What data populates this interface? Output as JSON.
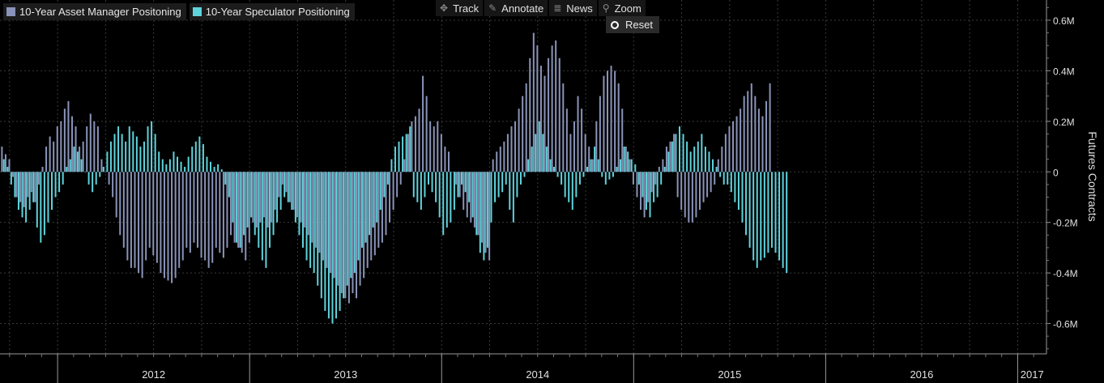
{
  "legend": {
    "asset_manager": "10-Year Asset Manager Positoning",
    "speculator": "10-Year Speculator Positioning"
  },
  "toolbar": {
    "track": "Track",
    "annotate": "Annotate",
    "news": "News",
    "zoom": "Zoom",
    "reset": "Reset"
  },
  "colors": {
    "asset_manager": "#8a93b8",
    "speculator": "#5fd3dc",
    "background": "#000000",
    "grid": "#3a3a3a"
  },
  "chart_data": {
    "type": "bar",
    "ylabel": "Futures Contracts",
    "ylim": [
      -0.72,
      0.68
    ],
    "yticks": [
      0.6,
      0.4,
      0.2,
      0,
      -0.2,
      -0.4,
      -0.6
    ],
    "ytick_labels": [
      "0.6M",
      "0.4M",
      "0.2M",
      "0",
      "-0.2M",
      "-0.4M",
      "-0.6M"
    ],
    "xlim": [
      2011.7,
      2017.15
    ],
    "xtick_labels": [
      {
        "label": "2012",
        "x": 2012.0
      },
      {
        "label": "2013",
        "x": 2013.0
      },
      {
        "label": "2014",
        "x": 2014.0
      },
      {
        "label": "2015",
        "x": 2015.0
      },
      {
        "label": "2016",
        "x": 2016.0
      },
      {
        "label": "2017",
        "x": 2017.0
      }
    ],
    "year_boundaries": [
      2012.0,
      2013.0,
      2014.0,
      2015.0,
      2016.0,
      2017.0
    ],
    "grid": true,
    "legend_position": "top-left",
    "series": [
      {
        "name": "10-Year Asset Manager Positoning",
        "start": 2011.71,
        "step": 0.01923,
        "values": [
          0.1,
          0.07,
          0.05,
          -0.02,
          -0.1,
          -0.12,
          -0.14,
          -0.1,
          -0.08,
          -0.12,
          -0.05,
          0.02,
          0.1,
          0.14,
          0.12,
          0.18,
          0.2,
          0.25,
          0.28,
          0.22,
          0.18,
          0.1,
          0.12,
          0.18,
          0.23,
          0.2,
          0.18,
          0.05,
          0,
          -0.05,
          -0.1,
          -0.18,
          -0.25,
          -0.3,
          -0.35,
          -0.38,
          -0.38,
          -0.4,
          -0.42,
          -0.35,
          -0.3,
          -0.33,
          -0.36,
          -0.4,
          -0.42,
          -0.43,
          -0.44,
          -0.42,
          -0.38,
          -0.35,
          -0.3,
          -0.32,
          -0.28,
          -0.3,
          -0.34,
          -0.35,
          -0.38,
          -0.36,
          -0.3,
          -0.32,
          -0.34,
          -0.3,
          -0.25,
          -0.28,
          -0.3,
          -0.32,
          -0.35,
          -0.28,
          -0.2,
          -0.22,
          -0.2,
          -0.18,
          -0.22,
          -0.2,
          -0.15,
          -0.1,
          -0.05,
          -0.08,
          -0.12,
          -0.15,
          -0.18,
          -0.2,
          -0.22,
          -0.25,
          -0.28,
          -0.3,
          -0.32,
          -0.35,
          -0.38,
          -0.4,
          -0.42,
          -0.45,
          -0.48,
          -0.5,
          -0.52,
          -0.48,
          -0.5,
          -0.45,
          -0.42,
          -0.38,
          -0.35,
          -0.33,
          -0.3,
          -0.28,
          -0.25,
          -0.2,
          -0.15,
          -0.1,
          -0.05,
          0.05,
          0.15,
          0.2,
          0.22,
          0.25,
          0.38,
          0.3,
          0.2,
          0.18,
          0.2,
          0.15,
          0.1,
          0.08,
          0,
          -0.05,
          -0.1,
          -0.15,
          -0.18,
          -0.2,
          -0.22,
          -0.25,
          -0.28,
          -0.32,
          -0.35,
          0.05,
          0.08,
          0.1,
          0.12,
          0.15,
          0.18,
          0.2,
          0.25,
          0.3,
          0.35,
          0.45,
          0.55,
          0.5,
          0.42,
          0.38,
          0.45,
          0.5,
          0.52,
          0.45,
          0.35,
          0.25,
          0.15,
          0.2,
          0.3,
          0.25,
          0.15,
          0.1,
          0.05,
          0.2,
          0.3,
          0.38,
          0.4,
          0.42,
          0.4,
          0.35,
          0.25,
          0.1,
          0.05,
          -0.05,
          -0.1,
          -0.15,
          -0.18,
          -0.12,
          -0.08,
          -0.05,
          0.02,
          0.05,
          0.1,
          0.12,
          0.15,
          -0.1,
          -0.15,
          -0.18,
          -0.2,
          -0.2,
          -0.18,
          -0.15,
          -0.12,
          -0.1,
          -0.08,
          -0.05,
          0.05,
          0.1,
          0.15,
          0.18,
          0.2,
          0.22,
          0.25,
          0.3,
          0.32,
          0.35,
          0.3,
          0.25,
          0.22,
          0.28,
          0.35
        ]
      },
      {
        "name": "10-Year Speculator Positioning",
        "start": 2011.72,
        "step": 0.01923,
        "values": [
          0.05,
          0.02,
          -0.05,
          -0.1,
          -0.15,
          -0.18,
          -0.2,
          -0.15,
          -0.12,
          -0.22,
          -0.28,
          -0.25,
          -0.2,
          -0.15,
          -0.1,
          -0.08,
          -0.05,
          0.02,
          0.05,
          0.1,
          0.08,
          0.05,
          0,
          -0.05,
          -0.08,
          -0.05,
          -0.02,
          0.02,
          0.08,
          0.12,
          0.15,
          0.18,
          0.15,
          0.12,
          0.18,
          0.16,
          0.14,
          0.1,
          0.12,
          0.18,
          0.2,
          0.15,
          0.08,
          0.05,
          0.03,
          0.05,
          0.08,
          0.06,
          0.04,
          0.02,
          0.06,
          0.1,
          0.12,
          0.14,
          0.11,
          0.06,
          0.04,
          0.02,
          0.03,
          0.01,
          -0.05,
          -0.1,
          -0.2,
          -0.28,
          -0.3,
          -0.25,
          -0.22,
          -0.18,
          -0.25,
          -0.3,
          -0.35,
          -0.38,
          -0.3,
          -0.25,
          -0.2,
          -0.15,
          -0.1,
          -0.12,
          -0.15,
          -0.2,
          -0.25,
          -0.3,
          -0.35,
          -0.38,
          -0.4,
          -0.45,
          -0.5,
          -0.55,
          -0.58,
          -0.6,
          -0.58,
          -0.55,
          -0.5,
          -0.45,
          -0.42,
          -0.4,
          -0.35,
          -0.3,
          -0.28,
          -0.25,
          -0.22,
          -0.2,
          -0.15,
          -0.1,
          -0.05,
          0.05,
          0.1,
          0.12,
          0.14,
          0.15,
          0.18,
          -0.1,
          -0.12,
          -0.15,
          -0.1,
          -0.05,
          -0.08,
          -0.12,
          -0.18,
          -0.25,
          -0.22,
          -0.2,
          -0.15,
          -0.1,
          -0.05,
          -0.08,
          -0.12,
          -0.18,
          -0.25,
          -0.32,
          -0.35,
          -0.3,
          -0.2,
          -0.12,
          -0.1,
          -0.08,
          -0.05,
          -0.15,
          -0.2,
          -0.1,
          -0.05,
          -0.02,
          0.05,
          0.1,
          0.15,
          0.2,
          0.15,
          0.1,
          0.05,
          0.02,
          -0.02,
          -0.05,
          -0.1,
          -0.12,
          -0.15,
          -0.1,
          -0.05,
          -0.02,
          0.02,
          0.05,
          0.1,
          0.05,
          -0.02,
          -0.05,
          -0.03,
          -0.02,
          0.02,
          0.05,
          0.1,
          0.08,
          0.05,
          0.03,
          -0.05,
          -0.1,
          -0.15,
          -0.18,
          -0.12,
          -0.1,
          -0.05,
          0.02,
          0.08,
          0.12,
          0.15,
          0.18,
          0.15,
          0.12,
          0.08,
          0.1,
          0.12,
          0.15,
          0.1,
          0.08,
          0.05,
          0.02,
          -0.02,
          -0.05,
          -0.05,
          -0.08,
          -0.12,
          -0.15,
          -0.2,
          -0.25,
          -0.3,
          -0.35,
          -0.38,
          -0.35,
          -0.34,
          -0.32,
          -0.3,
          -0.32,
          -0.35,
          -0.38,
          -0.4
        ]
      }
    ]
  }
}
